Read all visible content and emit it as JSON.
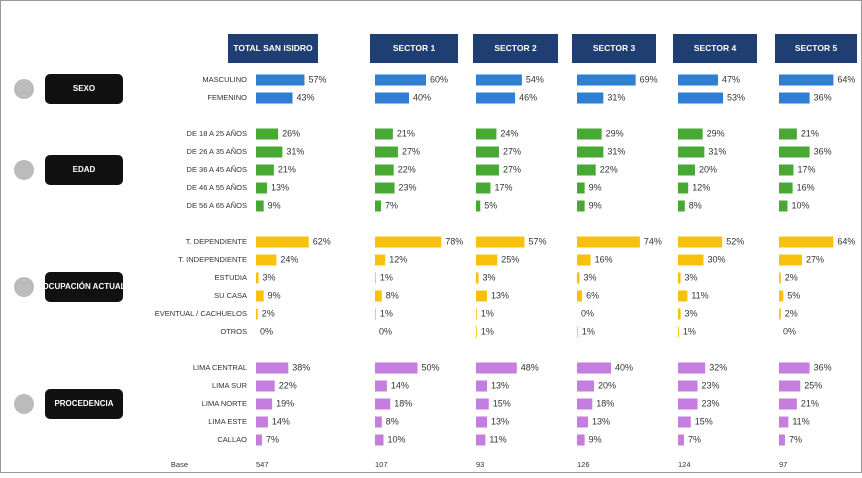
{
  "columns": [
    "TOTAL SAN ISIDRO",
    "SECTOR 1",
    "SECTOR 2",
    "SECTOR 3",
    "SECTOR 4",
    "SECTOR 5"
  ],
  "groups": [
    {
      "label": "SEXO",
      "color": "#2e7ed2",
      "rows": [
        {
          "label": "MASCULINO",
          "values": [
            57,
            60,
            54,
            69,
            47,
            64
          ],
          "value_labels": [
            "57%",
            "60%",
            "54%",
            "69%",
            "47%",
            "64%"
          ]
        },
        {
          "label": "FEMENINO",
          "values": [
            43,
            40,
            46,
            31,
            53,
            36
          ],
          "value_labels": [
            "43%",
            "40%",
            "46%",
            "31%",
            "53%",
            "36%"
          ]
        }
      ]
    },
    {
      "label": "EDAD",
      "color": "#48a834",
      "rows": [
        {
          "label": "DE 18 A 25 AÑOS",
          "values": [
            26,
            21,
            24,
            29,
            29,
            21
          ],
          "value_labels": [
            "26%",
            "21%",
            "24%",
            "29%",
            "29%",
            "21%"
          ]
        },
        {
          "label": "DE 26 A 35 AÑOS",
          "values": [
            31,
            27,
            27,
            31,
            31,
            36
          ],
          "value_labels": [
            "31%",
            "27%",
            "27%",
            "31%",
            "31%",
            "36%"
          ]
        },
        {
          "label": "DE 36 A 45 AÑOS",
          "values": [
            21,
            22,
            27,
            22,
            20,
            17
          ],
          "value_labels": [
            "21%",
            "22%",
            "27%",
            "22%",
            "20%",
            "17%"
          ]
        },
        {
          "label": "DE 46 A 55 AÑOS",
          "values": [
            13,
            23,
            17,
            9,
            12,
            16
          ],
          "value_labels": [
            "13%",
            "23%",
            "17%",
            "9%",
            "12%",
            "16%"
          ]
        },
        {
          "label": "DE 56 A 65 AÑOS",
          "values": [
            9,
            7,
            5,
            9,
            8,
            10
          ],
          "value_labels": [
            "9%",
            "7%",
            "5%",
            "9%",
            "8%",
            "10%"
          ]
        }
      ]
    },
    {
      "label": "OCUPACIÓN ACTUAL",
      "color": "#f8c10c",
      "rows": [
        {
          "label": "T. DEPENDIENTE",
          "values": [
            62,
            78,
            57,
            74,
            52,
            64
          ],
          "value_labels": [
            "62%",
            "78%",
            "57%",
            "74%",
            "52%",
            "64%"
          ]
        },
        {
          "label": "T. INDEPENDIENTE",
          "values": [
            24,
            12,
            25,
            16,
            30,
            27
          ],
          "value_labels": [
            "24%",
            "12%",
            "25%",
            "16%",
            "30%",
            "27%"
          ]
        },
        {
          "label": "ESTUDIA",
          "values": [
            3,
            1,
            3,
            3,
            3,
            2
          ],
          "value_labels": [
            "3%",
            "1%",
            "3%",
            "3%",
            "3%",
            "2%"
          ]
        },
        {
          "label": "SU CASA",
          "values": [
            9,
            8,
            13,
            6,
            11,
            5
          ],
          "value_labels": [
            "9%",
            "8%",
            "13%",
            "6%",
            "11%",
            "5%"
          ]
        },
        {
          "label": "EVENTUAL / CACHUELOS",
          "values": [
            2,
            1,
            1,
            0,
            3,
            2
          ],
          "value_labels": [
            "2%",
            "1%",
            "1%",
            "0%",
            "3%",
            "2%"
          ]
        },
        {
          "label": "OTROS",
          "values": [
            0,
            0,
            1,
            1,
            1,
            0
          ],
          "value_labels": [
            "0%",
            "0%",
            "1%",
            "1%",
            "1%",
            "0%"
          ]
        }
      ]
    },
    {
      "label": "PROCEDENCIA",
      "color": "#c57ddf",
      "rows": [
        {
          "label": "LIMA CENTRAL",
          "values": [
            38,
            50,
            48,
            40,
            32,
            36
          ],
          "value_labels": [
            "38%",
            "50%",
            "48%",
            "40%",
            "32%",
            "36%"
          ]
        },
        {
          "label": "LIMA SUR",
          "values": [
            22,
            14,
            13,
            20,
            23,
            25
          ],
          "value_labels": [
            "22%",
            "14%",
            "13%",
            "20%",
            "23%",
            "25%"
          ]
        },
        {
          "label": "LIMA NORTE",
          "values": [
            19,
            18,
            15,
            18,
            23,
            21
          ],
          "value_labels": [
            "19%",
            "18%",
            "15%",
            "18%",
            "23%",
            "21%"
          ]
        },
        {
          "label": "LIMA ESTE",
          "values": [
            14,
            8,
            13,
            13,
            15,
            11
          ],
          "value_labels": [
            "14%",
            "8%",
            "13%",
            "13%",
            "15%",
            "11%"
          ]
        },
        {
          "label": "CALLAO",
          "values": [
            7,
            10,
            11,
            9,
            7,
            7
          ],
          "value_labels": [
            "7%",
            "10%",
            "11%",
            "9%",
            "7%",
            "7%"
          ]
        }
      ]
    }
  ],
  "base": {
    "label": "Base",
    "values": [
      547,
      107,
      93,
      126,
      124,
      97
    ]
  }
}
